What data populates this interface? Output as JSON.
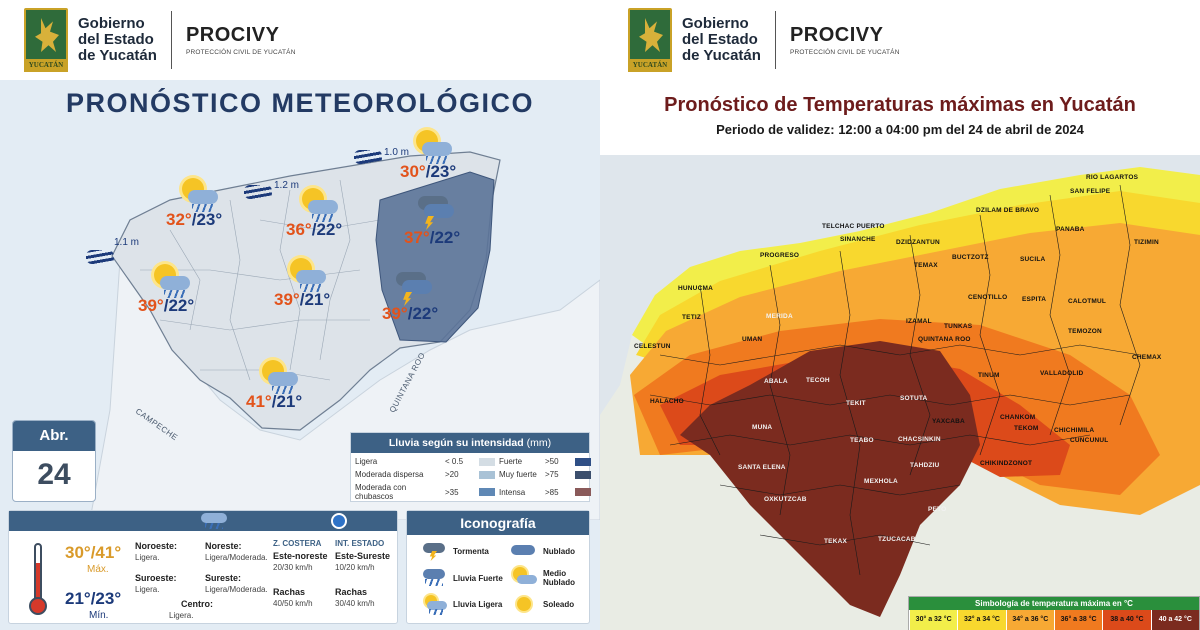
{
  "header": {
    "gobierno": [
      "Gobierno",
      "del Estado",
      "de Yucatán"
    ],
    "crest_label": "YUCATÁN",
    "org": "PROCIVY",
    "org_sub": "PROTECCIÓN CIVIL DE YUCATÁN"
  },
  "left": {
    "title": "PRONÓSTICO METEOROLÓGICO",
    "waves": [
      "1.1 m",
      "1.2 m",
      "1.0 m"
    ],
    "region_labels": [
      "CAMPECHE",
      "QUINTANA ROO"
    ],
    "forecasts": [
      {
        "max": "32°",
        "min": "/23°",
        "icon": "partly-cloudy-rain"
      },
      {
        "max": "36°",
        "min": "/22°",
        "icon": "partly-cloudy-rain"
      },
      {
        "max": "30°",
        "min": "/23°",
        "icon": "partly-cloudy-rain"
      },
      {
        "max": "37°",
        "min": "/22°",
        "icon": "storm"
      },
      {
        "max": "39°",
        "min": "/22°",
        "icon": "partly-cloudy-rain"
      },
      {
        "max": "39°",
        "min": "/21°",
        "icon": "partly-cloudy-rain"
      },
      {
        "max": "39°",
        "min": "/22°",
        "icon": "storm"
      },
      {
        "max": "41°",
        "min": "/21°",
        "icon": "partly-cloudy-rain"
      }
    ],
    "date": {
      "month": "Abr.",
      "day": "24"
    },
    "rain_legend": {
      "title": "Lluvia según su intensidad",
      "unit": "(mm)",
      "rows": [
        {
          "l1": "Ligera",
          "v1": "< 0.5",
          "c1": "#d4dde4",
          "l2": "Fuerte",
          "v2": ">50",
          "c2": "#2f4f86"
        },
        {
          "l1": "Moderada dispersa",
          "v1": ">20",
          "c1": "#a9c2d6",
          "l2": "Muy fuerte",
          "v2": ">75",
          "c2": "#3c4f6d"
        },
        {
          "l1": "Moderada con chubascos",
          "v1": ">35",
          "c1": "#5f88b5",
          "l2": "Intensa",
          "v2": ">85",
          "c2": "#8a5a5a"
        }
      ]
    },
    "temps": {
      "max": "30°/41°",
      "max_label": "Máx.",
      "min": "21°/23°",
      "min_label": "Mín."
    },
    "wind": {
      "noroeste": {
        "dir": "Noroeste:",
        "val": "Ligera."
      },
      "noreste": {
        "dir": "Noreste:",
        "val": "Ligera/Moderada."
      },
      "suroeste": {
        "dir": "Suroeste:",
        "val": "Ligera."
      },
      "sureste": {
        "dir": "Sureste:",
        "val": "Ligera/Moderada."
      },
      "centro": {
        "dir": "Centro:",
        "val": "Ligera."
      },
      "costera": {
        "head": "Z. COSTERA",
        "dir": "Este-noreste",
        "speed": "20/30 km/h",
        "rachas": "Rachas",
        "rachas_val": "40/50 km/h"
      },
      "interior": {
        "head": "INT. ESTADO",
        "dir": "Este-Sureste",
        "speed": "10/20 km/h",
        "rachas": "Rachas",
        "rachas_val": "30/40 km/h"
      }
    },
    "iconografia": {
      "title": "Iconografía",
      "items": [
        "Tormenta",
        "Nublado",
        "Lluvia Fuerte",
        "Medio Nublado",
        "Lluvia Ligera",
        "Soleado"
      ]
    }
  },
  "right": {
    "title": "Pronóstico de Temperaturas máximas en Yucatán",
    "subtitle": "Periodo de validez: 12:00 a 04:00 pm del 24 de abril de 2024",
    "municipalities": [
      "RIO LAGARTOS",
      "SAN FELIPE",
      "DZILAM DE BRAVO",
      "TELCHAC PUERTO",
      "SINANCHE",
      "DZIDZANTUN",
      "PANABA",
      "TIZIMIN",
      "PROGRESO",
      "BUCTZOTZ",
      "SUCILA",
      "HUNUCMA",
      "TEMAX",
      "CENOTILLO",
      "ESPITA",
      "CALOTMUL",
      "TETIZ",
      "MERIDA",
      "IZAMAL",
      "TUNKAS",
      "TEMOZON",
      "CELESTUN",
      "UMAN",
      "QUINTANA ROO",
      "CHEMAX",
      "TINUM",
      "VALLADOLID",
      "ABALA",
      "TECOH",
      "SOTUTA",
      "HALACHO",
      "TEKIT",
      "YAXCABA",
      "CHANKOM",
      "TEKOM",
      "CHICHIMILA",
      "MUNA",
      "TEABO",
      "CHACSINKIN",
      "CUNCUNUL",
      "SANTA ELENA",
      "TAHDZIU",
      "CHIKINDZONOT",
      "OXKUTZCAB",
      "MEXHOLA",
      "PETO",
      "TEKAX",
      "TZUCACAB"
    ],
    "legend": {
      "title": "Simbología de temperatura máxima en °C",
      "bins": [
        {
          "label": "30° a 32 °C",
          "color": "#f2ee4a"
        },
        {
          "label": "32° a 34 °C",
          "color": "#f8d82e"
        },
        {
          "label": "34° a 36 °C",
          "color": "#f7a934"
        },
        {
          "label": "36° a 38 °C",
          "color": "#f07a1f"
        },
        {
          "label": "38 a 40 °C",
          "color": "#dc4a1a"
        },
        {
          "label": "40 a 42 °C",
          "color": "#7b2b1f"
        }
      ]
    }
  }
}
